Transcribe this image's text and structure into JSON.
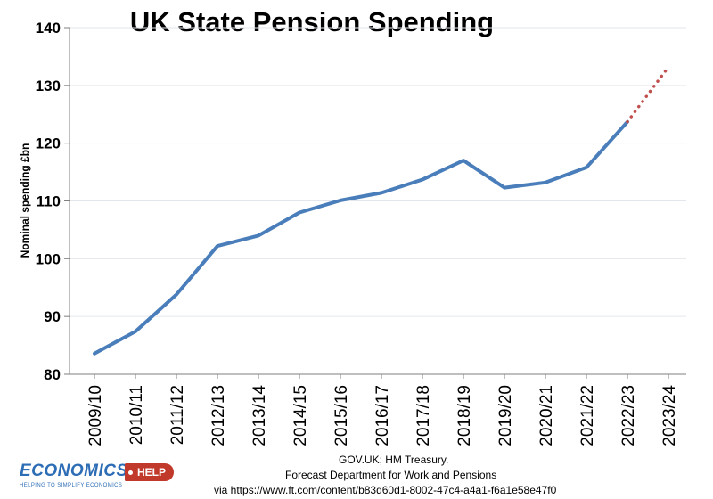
{
  "chart_data": {
    "type": "line",
    "title": "UK State Pension Spending",
    "ylabel": "Nominal spending £bn",
    "xlabel": "",
    "ylim": [
      80,
      140
    ],
    "yticks": [
      80,
      90,
      100,
      110,
      120,
      130,
      140
    ],
    "grid": true,
    "categories": [
      "2009/10",
      "2010/11",
      "2011/12",
      "2012/13",
      "2013/14",
      "2014/15",
      "2015/16",
      "2016/17",
      "2017/18",
      "2018/19",
      "2019/20",
      "2020/21",
      "2021/22",
      "2022/23",
      "2023/24"
    ],
    "series": [
      {
        "style": "solid",
        "color": "#4a7ebb",
        "values": [
          83.6,
          87.4,
          93.8,
          102.2,
          104.0,
          108.0,
          110.1,
          111.4,
          113.7,
          117.0,
          112.3,
          113.2,
          115.8,
          123.7,
          null
        ]
      },
      {
        "style": "dotted",
        "color": "#c0504d",
        "values": [
          null,
          null,
          null,
          null,
          null,
          null,
          null,
          null,
          null,
          null,
          null,
          null,
          null,
          123.7,
          133.2
        ]
      }
    ]
  },
  "sources": {
    "line1": "GOV.UK; HM Treasury.",
    "line2": "Forecast  Department for Work and Pensions",
    "line3": "via   https://www.ft.com/content/b83d60d1-8002-47c4-a4a1-f6a1e58e47f0"
  },
  "logo": {
    "word": "ECONOMICS",
    "badge": "HELP",
    "tagline": "HELPING TO SIMPLIFY ECONOMICS",
    "colors": {
      "blue": "#2d6db5",
      "red": "#c0392b"
    }
  }
}
